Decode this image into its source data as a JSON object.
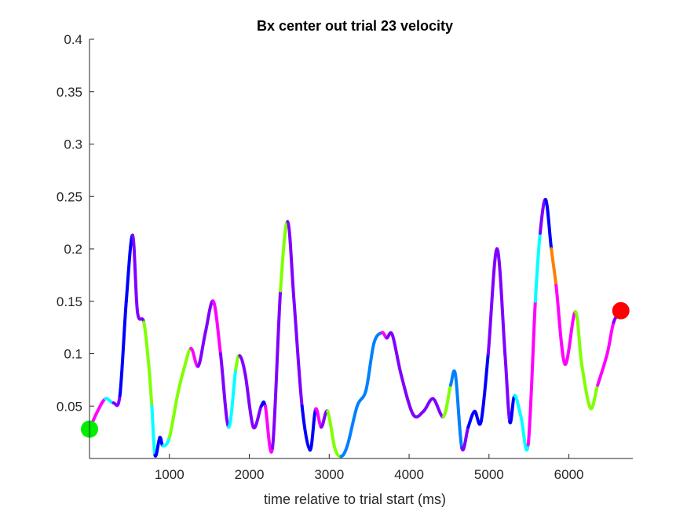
{
  "chart_data": {
    "type": "line",
    "title": "Bx  center out trial 23 velocity",
    "xlabel": "time relative to trial start (ms)",
    "ylabel": "",
    "xlim": [
      0,
      6800
    ],
    "ylim": [
      0,
      0.4
    ],
    "x_ticks": [
      1000,
      2000,
      3000,
      4000,
      5000,
      6000
    ],
    "y_ticks": [
      0.05,
      0.1,
      0.15,
      0.2,
      0.25,
      0.3,
      0.35,
      0.4
    ],
    "x_tick_labels": [
      "1000",
      "2000",
      "3000",
      "4000",
      "5000",
      "6000"
    ],
    "y_tick_labels": [
      "0.05",
      "0.1",
      "0.15",
      "0.2",
      "0.25",
      "0.3",
      "0.35",
      "0.4"
    ],
    "grid": false,
    "series": [
      {
        "points": [
          [
            0,
            0.028,
            "#ff00ff"
          ],
          [
            100,
            0.045,
            "#ff00ff"
          ],
          [
            200,
            0.057,
            "#00ffff"
          ],
          [
            300,
            0.053,
            "#8000ff"
          ],
          [
            380,
            0.06,
            "#0000ff"
          ],
          [
            460,
            0.15,
            "#0000ff"
          ],
          [
            540,
            0.213,
            "#8000ff"
          ],
          [
            600,
            0.14,
            "#8000ff"
          ],
          [
            680,
            0.13,
            "#80ff00"
          ],
          [
            740,
            0.09,
            "#80ff00"
          ],
          [
            780,
            0.05,
            "#00ffff"
          ],
          [
            820,
            0.003,
            "#0000ff"
          ],
          [
            880,
            0.02,
            "#0000ff"
          ],
          [
            920,
            0.012,
            "#00ffff"
          ],
          [
            1000,
            0.02,
            "#80ff00"
          ],
          [
            1100,
            0.06,
            "#80ff00"
          ],
          [
            1180,
            0.085,
            "#80ff00"
          ],
          [
            1270,
            0.105,
            "#ff00ff"
          ],
          [
            1360,
            0.088,
            "#8000ff"
          ],
          [
            1450,
            0.12,
            "#8000ff"
          ],
          [
            1550,
            0.15,
            "#ff00ff"
          ],
          [
            1640,
            0.1,
            "#8000ff"
          ],
          [
            1740,
            0.03,
            "#00ffff"
          ],
          [
            1830,
            0.085,
            "#80ff00"
          ],
          [
            1880,
            0.098,
            "#8000ff"
          ],
          [
            1950,
            0.08,
            "#8000ff"
          ],
          [
            2050,
            0.03,
            "#8000ff"
          ],
          [
            2150,
            0.05,
            "#0000ff"
          ],
          [
            2200,
            0.05,
            "#ff00ff"
          ],
          [
            2290,
            0.01,
            "#8000ff"
          ],
          [
            2390,
            0.16,
            "#80ff00"
          ],
          [
            2480,
            0.226,
            "#8000ff"
          ],
          [
            2560,
            0.15,
            "#8000ff"
          ],
          [
            2660,
            0.05,
            "#0000ff"
          ],
          [
            2760,
            0.008,
            "#0000ff"
          ],
          [
            2830,
            0.047,
            "#ff00ff"
          ],
          [
            2900,
            0.03,
            "#8000ff"
          ],
          [
            2980,
            0.045,
            "#80ff00"
          ],
          [
            3070,
            0.01,
            "#80ff00"
          ],
          [
            3150,
            0.002,
            "#0080ff"
          ],
          [
            3230,
            0.013,
            "#0080ff"
          ],
          [
            3350,
            0.05,
            "#0080ff"
          ],
          [
            3460,
            0.065,
            "#0080ff"
          ],
          [
            3560,
            0.11,
            "#0080ff"
          ],
          [
            3660,
            0.12,
            "#ff00ff"
          ],
          [
            3720,
            0.115,
            "#8000ff"
          ],
          [
            3790,
            0.118,
            "#8000ff"
          ],
          [
            3900,
            0.08,
            "#8000ff"
          ],
          [
            4050,
            0.042,
            "#8000ff"
          ],
          [
            4180,
            0.045,
            "#8000ff"
          ],
          [
            4300,
            0.057,
            "#8000ff"
          ],
          [
            4430,
            0.04,
            "#80ff00"
          ],
          [
            4520,
            0.07,
            "#0080ff"
          ],
          [
            4580,
            0.08,
            "#0080ff"
          ],
          [
            4660,
            0.01,
            "#8000ff"
          ],
          [
            4740,
            0.03,
            "#0000ff"
          ],
          [
            4820,
            0.045,
            "#0000ff"
          ],
          [
            4900,
            0.035,
            "#0000ff"
          ],
          [
            4990,
            0.1,
            "#8000ff"
          ],
          [
            5100,
            0.2,
            "#8000ff"
          ],
          [
            5200,
            0.1,
            "#8000ff"
          ],
          [
            5260,
            0.035,
            "#0000ff"
          ],
          [
            5320,
            0.06,
            "#00ffff"
          ],
          [
            5400,
            0.04,
            "#00ffff"
          ],
          [
            5490,
            0.013,
            "#ff00ff"
          ],
          [
            5580,
            0.15,
            "#00ffff"
          ],
          [
            5640,
            0.215,
            "#8000ff"
          ],
          [
            5710,
            0.247,
            "#0000ff"
          ],
          [
            5780,
            0.2,
            "#ff8000"
          ],
          [
            5840,
            0.165,
            "#ff00ff"
          ],
          [
            5950,
            0.09,
            "#ff00ff"
          ],
          [
            6080,
            0.14,
            "#80ff00"
          ],
          [
            6160,
            0.09,
            "#80ff00"
          ],
          [
            6270,
            0.048,
            "#80ff00"
          ],
          [
            6360,
            0.07,
            "#ff00ff"
          ],
          [
            6480,
            0.1,
            "#ff00ff"
          ],
          [
            6560,
            0.13,
            "#8000ff"
          ],
          [
            6650,
            0.141,
            "#8000ff"
          ]
        ]
      }
    ],
    "start_marker": {
      "x": 0,
      "y": 0.028,
      "color": "#00ee00"
    },
    "end_marker": {
      "x": 6650,
      "y": 0.141,
      "color": "#ff0000"
    }
  }
}
